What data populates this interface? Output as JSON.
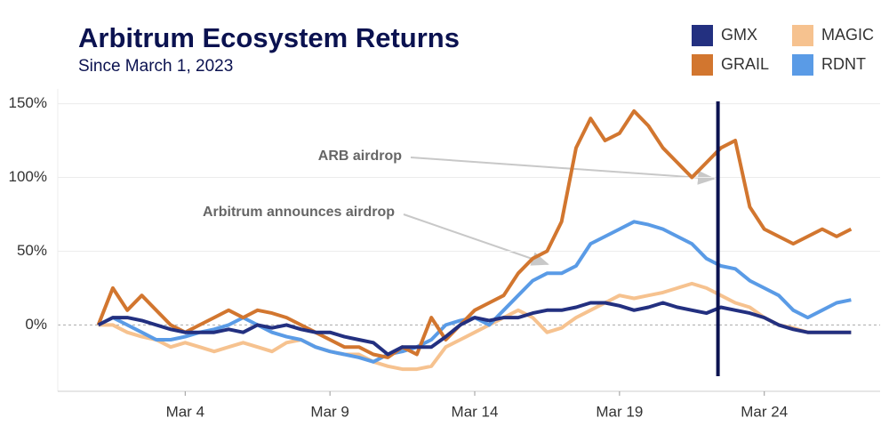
{
  "chart_data": {
    "type": "line",
    "title": "Arbitrum Ecosystem Returns",
    "subtitle": "Since March 1, 2023",
    "annotations": [
      "ARB airdrop",
      "Arbitrum announces airdrop"
    ],
    "vertical_line_x": 22.4,
    "x": [
      1,
      1.5,
      2,
      2.5,
      3,
      3.5,
      4,
      4.5,
      5,
      5.5,
      6,
      6.5,
      7,
      7.5,
      8,
      8.5,
      9,
      9.5,
      10,
      10.5,
      11,
      11.5,
      12,
      12.5,
      13,
      13.5,
      14,
      14.5,
      15,
      15.5,
      16,
      16.5,
      17,
      17.5,
      18,
      18.5,
      19,
      19.5,
      20,
      20.5,
      21,
      21.5,
      22,
      22.5,
      23,
      23.5,
      24,
      24.5,
      25,
      25.5,
      26,
      26.5,
      27
    ],
    "xlim": [
      -0.4,
      28
    ],
    "xticks": [
      {
        "value": 4,
        "label": "Mar 4"
      },
      {
        "value": 9,
        "label": "Mar 9"
      },
      {
        "value": 14,
        "label": "Mar 14"
      },
      {
        "value": 19,
        "label": "Mar 19"
      },
      {
        "value": 24,
        "label": "Mar 24"
      }
    ],
    "ylim": [
      -45,
      160
    ],
    "yticks": [
      {
        "value": 0,
        "label": "0%"
      },
      {
        "value": 50,
        "label": "50%"
      },
      {
        "value": 100,
        "label": "100%"
      },
      {
        "value": 150,
        "label": "150%"
      }
    ],
    "grid": true,
    "series": [
      {
        "name": "MAGIC",
        "color": "#f6c28f",
        "values": [
          0,
          0,
          -5,
          -8,
          -10,
          -15,
          -12,
          -15,
          -18,
          -15,
          -12,
          -15,
          -18,
          -12,
          -10,
          -15,
          -18,
          -20,
          -20,
          -25,
          -28,
          -30,
          -30,
          -28,
          -15,
          -10,
          -5,
          0,
          5,
          10,
          5,
          -5,
          -2,
          5,
          10,
          15,
          20,
          18,
          20,
          22,
          25,
          28,
          25,
          20,
          15,
          12,
          5,
          0,
          -2,
          -5,
          -5,
          -5,
          -5
        ]
      },
      {
        "name": "RDNT",
        "color": "#5a9be6",
        "values": [
          0,
          5,
          0,
          -5,
          -10,
          -10,
          -8,
          -5,
          -3,
          0,
          5,
          0,
          -5,
          -8,
          -10,
          -15,
          -18,
          -20,
          -22,
          -25,
          -20,
          -18,
          -15,
          -10,
          0,
          3,
          5,
          0,
          10,
          20,
          30,
          35,
          35,
          40,
          55,
          60,
          65,
          70,
          68,
          65,
          60,
          55,
          45,
          40,
          38,
          30,
          25,
          20,
          10,
          5,
          10,
          15,
          17
        ]
      },
      {
        "name": "GRAIL",
        "color": "#d2762f",
        "values": [
          0,
          25,
          10,
          20,
          10,
          0,
          -5,
          0,
          5,
          10,
          5,
          10,
          8,
          5,
          0,
          -5,
          -10,
          -15,
          -15,
          -20,
          -22,
          -15,
          -20,
          5,
          -10,
          0,
          10,
          15,
          20,
          35,
          45,
          50,
          70,
          120,
          140,
          125,
          130,
          145,
          135,
          120,
          110,
          100,
          110,
          120,
          125,
          80,
          65,
          60,
          55,
          60,
          65,
          60,
          65
        ]
      },
      {
        "name": "GMX",
        "color": "#233080",
        "values": [
          0,
          5,
          5,
          3,
          0,
          -3,
          -5,
          -5,
          -5,
          -3,
          -5,
          0,
          -2,
          0,
          -3,
          -5,
          -5,
          -8,
          -10,
          -12,
          -20,
          -15,
          -15,
          -15,
          -8,
          0,
          5,
          3,
          5,
          5,
          8,
          10,
          10,
          12,
          15,
          15,
          13,
          10,
          12,
          15,
          12,
          10,
          8,
          12,
          10,
          8,
          5,
          0,
          -3,
          -5,
          -5,
          -5,
          -5
        ]
      }
    ]
  }
}
